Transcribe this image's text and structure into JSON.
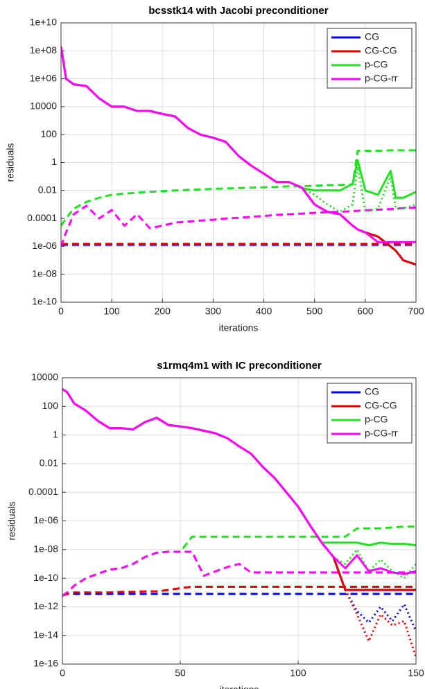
{
  "chart_data": [
    {
      "type": "line",
      "title": "bcsstk14 with Jacobi preconditioner",
      "xlabel": "iterations",
      "ylabel": "residuals",
      "log_y": true,
      "grid": true,
      "legend": "upper right",
      "xlim": [
        0,
        700
      ],
      "xticks": [
        0,
        100,
        200,
        300,
        400,
        500,
        600,
        700
      ],
      "ylim": [
        1e-10,
        10000000000.0
      ],
      "yticks": [
        {
          "value": 10000000000.0,
          "label": "1e+10"
        },
        {
          "value": 100000000.0,
          "label": "1e+08"
        },
        {
          "value": 1000000.0,
          "label": "1e+06"
        },
        10000,
        100,
        1,
        0.01,
        0.0001,
        {
          "value": 1e-06,
          "label": "1e-06"
        },
        {
          "value": 1e-08,
          "label": "1e-08"
        },
        {
          "value": 1e-10,
          "label": "1e-10"
        }
      ],
      "x": [
        0,
        10,
        25,
        50,
        75,
        100,
        125,
        150,
        175,
        200,
        225,
        250,
        275,
        300,
        325,
        350,
        375,
        400,
        425,
        450,
        475,
        500,
        525,
        550,
        575,
        585,
        600,
        625,
        650,
        660,
        675,
        700
      ],
      "series": [
        {
          "name": "CG",
          "color": "#0000ff",
          "values": [
            200000000.0,
            1000000.0,
            400000.0,
            300000.0,
            40000.0,
            10000.0,
            10000.0,
            5000.0,
            5000.0,
            3000.0,
            2000.0,
            300.0,
            100.0,
            60,
            30,
            3,
            0.6,
            0.16,
            0.04,
            0.04,
            0.016,
            0.001,
            0.0003,
            0.0002,
            3e-05,
            1.6e-05,
            1e-05,
            5e-06,
            1e-06,
            5e-07,
            1e-07,
            5e-08
          ],
          "dashed": [
            1.3e-06,
            1.3e-06,
            1.3e-06,
            1.3e-06,
            1.3e-06,
            1.3e-06,
            1.3e-06,
            1.3e-06,
            1.3e-06,
            1.3e-06,
            1.3e-06,
            1.3e-06,
            1.3e-06,
            1.3e-06,
            1.3e-06,
            1.3e-06,
            1.3e-06,
            1.3e-06,
            1.3e-06,
            1.3e-06,
            1.3e-06,
            1.3e-06,
            1.3e-06,
            1.3e-06,
            1.3e-06,
            1.3e-06,
            1.3e-06,
            1.3e-06,
            1.3e-06,
            1.3e-06,
            1.3e-06,
            1.3e-06
          ]
        },
        {
          "name": "CG-CG",
          "color": "#e00000",
          "values": [
            200000000.0,
            1000000.0,
            400000.0,
            300000.0,
            40000.0,
            10000.0,
            10000.0,
            5000.0,
            5000.0,
            3000.0,
            2000.0,
            300.0,
            100.0,
            60,
            30,
            3,
            0.6,
            0.16,
            0.04,
            0.04,
            0.016,
            0.001,
            0.0003,
            0.0002,
            3e-05,
            1.6e-05,
            1e-05,
            5e-06,
            1e-06,
            5e-07,
            1e-07,
            5e-08
          ],
          "dashed": [
            1.5e-06,
            1.5e-06,
            1.5e-06,
            1.5e-06,
            1.5e-06,
            1.5e-06,
            1.5e-06,
            1.5e-06,
            1.5e-06,
            1.5e-06,
            1.5e-06,
            1.5e-06,
            1.5e-06,
            1.5e-06,
            1.5e-06,
            1.5e-06,
            1.5e-06,
            1.5e-06,
            1.5e-06,
            1.5e-06,
            1.5e-06,
            1.5e-06,
            1.5e-06,
            1.5e-06,
            1.5e-06,
            1.5e-06,
            1.5e-06,
            1.5e-06,
            1.5e-06,
            1.5e-06,
            1.5e-06,
            1.5e-06
          ]
        },
        {
          "name": "p-CG",
          "color": "#22e022",
          "values": [
            200000000.0,
            1000000.0,
            400000.0,
            300000.0,
            40000.0,
            10000.0,
            10000.0,
            5000.0,
            5000.0,
            3000.0,
            2000.0,
            300.0,
            100.0,
            60,
            30,
            3,
            0.6,
            0.16,
            0.04,
            0.04,
            0.015,
            0.01,
            0.01,
            0.01,
            0.03,
            1.5,
            0.01,
            0.005,
            0.25,
            0.003,
            0.003,
            0.008
          ],
          "dashed": [
            3e-05,
            0.0001,
            0.0005,
            0.0015,
            0.003,
            0.005,
            0.006,
            0.007,
            0.008,
            0.009,
            0.01,
            0.011,
            0.012,
            0.013,
            0.014,
            0.015,
            0.016,
            0.017,
            0.018,
            0.02,
            0.02,
            0.022,
            0.024,
            0.025,
            0.027,
            7,
            7,
            7,
            7.5,
            7.5,
            7.5,
            7.5
          ],
          "dotted": [
            null,
            null,
            null,
            null,
            null,
            null,
            null,
            null,
            null,
            null,
            null,
            null,
            null,
            null,
            null,
            null,
            null,
            null,
            null,
            null,
            0.015,
            0.005,
            0.001,
            0.0003,
            0.001,
            0.5,
            0.0003,
            0.0005,
            0.1,
            0.0005,
            0.0005,
            0.001
          ]
        },
        {
          "name": "p-CG-rr",
          "color": "#ff00ff",
          "values": [
            200000000.0,
            1000000.0,
            400000.0,
            300000.0,
            40000.0,
            10000.0,
            10000.0,
            5000.0,
            5000.0,
            3000.0,
            2000.0,
            300.0,
            100.0,
            60,
            30,
            3,
            0.6,
            0.16,
            0.04,
            0.04,
            0.016,
            0.001,
            0.0003,
            0.0002,
            3e-05,
            1.6e-05,
            1e-05,
            2e-06,
            2e-06,
            2e-06,
            2e-06,
            2e-06
          ],
          "dashed": [
            1e-06,
            1e-05,
            0.0002,
            0.0008,
            0.0001,
            0.0004,
            3e-05,
            0.0002,
            2e-05,
            3e-05,
            5e-05,
            6e-05,
            7e-05,
            8e-05,
            0.0001,
            0.00011,
            0.00013,
            0.00015,
            0.00018,
            0.0002,
            0.00022,
            0.00025,
            0.00028,
            0.0003,
            0.00033,
            0.00035,
            0.00038,
            0.00042,
            0.00047,
            0.0005,
            0.00055,
            0.0006
          ]
        }
      ]
    },
    {
      "type": "line",
      "title": "s1rmq4m1 with IC preconditioner",
      "xlabel": "iterations",
      "ylabel": "residuals",
      "log_y": true,
      "grid": true,
      "legend": "upper right",
      "xlim": [
        0,
        150
      ],
      "xticks": [
        0,
        50,
        100,
        150
      ],
      "ylim": [
        1e-16,
        10000
      ],
      "yticks": [
        10000,
        100,
        1,
        0.01,
        0.0001,
        {
          "value": 1e-06,
          "label": "1e-06"
        },
        {
          "value": 1e-08,
          "label": "1e-08"
        },
        {
          "value": 1e-10,
          "label": "1e-10"
        },
        {
          "value": 1e-12,
          "label": "1e-12"
        },
        {
          "value": 1e-14,
          "label": "1e-14"
        },
        {
          "value": 1e-16,
          "label": "1e-16"
        }
      ],
      "x": [
        0,
        2,
        5,
        10,
        15,
        20,
        25,
        30,
        35,
        40,
        45,
        50,
        55,
        60,
        65,
        70,
        75,
        80,
        85,
        90,
        95,
        100,
        105,
        110,
        115,
        120,
        125,
        130,
        135,
        140,
        145,
        150
      ],
      "series": [
        {
          "name": "CG",
          "color": "#0000ff",
          "values": [
            1600,
            1000,
            160,
            50,
            10,
            3,
            3,
            2.5,
            8,
            16,
            5,
            4,
            3,
            2,
            1.3,
            0.6,
            0.16,
            0.05,
            0.006,
            0.001,
            0.0001,
            1e-05,
            5e-07,
            3e-08,
            3e-09,
            1.5e-11,
            1.5e-11,
            1.5e-11,
            1.5e-11,
            1.5e-11,
            1.5e-11,
            1.5e-11
          ],
          "dashed": [
            6e-12,
            8e-12,
            8e-12,
            8e-12,
            8e-12,
            8e-12,
            8e-12,
            8e-12,
            8e-12,
            8e-12,
            8e-12,
            8e-12,
            8e-12,
            8e-12,
            8e-12,
            8e-12,
            8e-12,
            8e-12,
            8e-12,
            8e-12,
            8e-12,
            8e-12,
            8e-12,
            8e-12,
            8e-12,
            8e-12,
            8e-12,
            8e-12,
            8e-12,
            8e-12,
            8e-12,
            8e-12
          ],
          "dotted": [
            null,
            null,
            null,
            null,
            null,
            null,
            null,
            null,
            null,
            null,
            null,
            null,
            null,
            null,
            null,
            null,
            null,
            null,
            null,
            null,
            null,
            null,
            null,
            null,
            null,
            1.5e-11,
            5e-13,
            8e-14,
            1e-12,
            1e-13,
            1.5e-12,
            2e-14
          ]
        },
        {
          "name": "CG-CG",
          "color": "#e00000",
          "values": [
            1600,
            1000,
            160,
            50,
            10,
            3,
            3,
            2.5,
            8,
            16,
            5,
            4,
            3,
            2,
            1.3,
            0.6,
            0.16,
            0.05,
            0.006,
            0.001,
            0.0001,
            1e-05,
            5e-07,
            3e-08,
            3e-09,
            1.5e-11,
            1.5e-11,
            1.5e-11,
            1.5e-11,
            1.5e-11,
            1.5e-11,
            1.5e-11
          ],
          "dashed": [
            6e-12,
            8e-12,
            1e-11,
            1e-11,
            1e-11,
            1e-11,
            1.1e-11,
            1.1e-11,
            1.2e-11,
            1.2e-11,
            1.5e-11,
            2e-11,
            2.5e-11,
            2.5e-11,
            2.5e-11,
            2.5e-11,
            2.5e-11,
            2.5e-11,
            2.5e-11,
            2.5e-11,
            2.5e-11,
            2.5e-11,
            2.5e-11,
            2.5e-11,
            2.5e-11,
            2.5e-11,
            2.5e-11,
            2.5e-11,
            2.5e-11,
            2.5e-11,
            2.5e-11,
            2.5e-11
          ],
          "dotted": [
            null,
            null,
            null,
            null,
            null,
            null,
            null,
            null,
            null,
            null,
            null,
            null,
            null,
            null,
            null,
            null,
            null,
            null,
            null,
            null,
            null,
            null,
            null,
            null,
            null,
            1.5e-11,
            3e-13,
            4e-15,
            3e-13,
            5e-14,
            1e-13,
            3e-16
          ]
        },
        {
          "name": "p-CG",
          "color": "#22e022",
          "values": [
            1600,
            1000,
            160,
            50,
            10,
            3,
            3,
            2.5,
            8,
            16,
            5,
            4,
            3,
            2,
            1.3,
            0.6,
            0.16,
            0.05,
            0.006,
            0.001,
            0.0001,
            1e-05,
            5e-07,
            3e-08,
            3e-08,
            3e-08,
            3e-08,
            2e-08,
            3e-08,
            2.5e-08,
            2.5e-08,
            2e-08
          ],
          "dashed": [
            6e-12,
            1e-11,
            3e-11,
            1e-10,
            2e-10,
            4e-10,
            5e-10,
            1e-09,
            3e-09,
            6e-09,
            7e-09,
            7e-09,
            8e-08,
            8e-08,
            8e-08,
            8e-08,
            8e-08,
            8e-08,
            8e-08,
            8e-08,
            8e-08,
            8e-08,
            8e-08,
            8e-08,
            8e-08,
            8e-08,
            3e-07,
            3e-07,
            3e-07,
            3.5e-07,
            4e-07,
            4e-07
          ],
          "dotted": [
            null,
            null,
            null,
            null,
            null,
            null,
            null,
            null,
            null,
            null,
            null,
            null,
            null,
            null,
            null,
            null,
            null,
            null,
            null,
            null,
            null,
            null,
            null,
            null,
            3e-09,
            1e-09,
            1e-08,
            3e-10,
            2e-09,
            3e-10,
            1e-10,
            1e-09
          ]
        },
        {
          "name": "p-CG-rr",
          "color": "#ff00ff",
          "values": [
            1600,
            1000,
            160,
            50,
            10,
            3,
            3,
            2.5,
            8,
            16,
            5,
            4,
            3,
            2,
            1.3,
            0.6,
            0.16,
            0.05,
            0.006,
            0.001,
            0.0001,
            1e-05,
            5e-07,
            3e-08,
            3e-09,
            5e-10,
            4e-09,
            3e-10,
            5e-10,
            2.5e-10,
            2e-10,
            3e-10
          ],
          "dashed": [
            6e-12,
            1e-11,
            3e-11,
            1e-10,
            2e-10,
            4e-10,
            5e-10,
            1e-09,
            3e-09,
            6e-09,
            7e-09,
            7e-09,
            7e-09,
            1.5e-10,
            3e-10,
            6e-10,
            1e-09,
            2.5e-10,
            2.5e-10,
            2.5e-10,
            2.5e-10,
            2.5e-10,
            2.5e-10,
            2.5e-10,
            2.5e-10,
            2.5e-10,
            2.5e-10,
            2.5e-10,
            2.5e-10,
            2.5e-10,
            2.5e-10,
            2.5e-10
          ]
        }
      ]
    }
  ]
}
